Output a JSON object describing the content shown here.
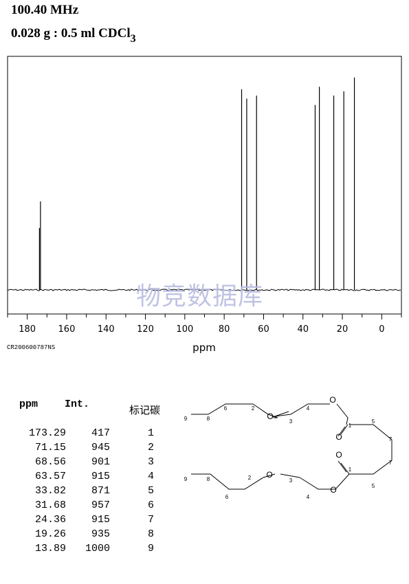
{
  "header": {
    "line1": "100.40 MHz",
    "line2_main": "0.028 g : 0.5 ml CDCl",
    "line2_sub": "3"
  },
  "chart_data": {
    "type": "line",
    "xlabel": "ppm",
    "xlim": [
      190,
      -10
    ],
    "x_ticks": [
      180,
      160,
      140,
      120,
      100,
      80,
      60,
      40,
      20,
      0
    ],
    "x_tick_labels": [
      "180",
      "160",
      "140",
      "120",
      "100",
      "80",
      "60",
      "40",
      "20",
      "0"
    ],
    "ylim": [
      0,
      1100
    ],
    "peaks": [
      {
        "ppm": 173.29,
        "intensity": 417
      },
      {
        "ppm": 71.15,
        "intensity": 945
      },
      {
        "ppm": 68.56,
        "intensity": 901
      },
      {
        "ppm": 63.57,
        "intensity": 915
      },
      {
        "ppm": 33.82,
        "intensity": 871
      },
      {
        "ppm": 31.68,
        "intensity": 957
      },
      {
        "ppm": 24.36,
        "intensity": 915
      },
      {
        "ppm": 19.26,
        "intensity": 935
      },
      {
        "ppm": 13.89,
        "intensity": 1000
      }
    ],
    "grid": false
  },
  "spectrum_code": "CR200600787NS",
  "watermark": "物竞数据库",
  "table": {
    "headers": [
      "ppm",
      "Int.",
      "标记碳"
    ],
    "rows": [
      [
        "173.29",
        "417",
        "1"
      ],
      [
        "71.15",
        "945",
        "2"
      ],
      [
        "68.56",
        "901",
        "3"
      ],
      [
        "63.57",
        "915",
        "4"
      ],
      [
        "33.82",
        "871",
        "5"
      ],
      [
        "31.68",
        "957",
        "6"
      ],
      [
        "24.36",
        "915",
        "7"
      ],
      [
        "19.26",
        "935",
        "8"
      ],
      [
        "13.89",
        "1000",
        "9"
      ]
    ]
  },
  "structure": {
    "oxygen_label": "O",
    "carbon_labels": [
      "1",
      "2",
      "3",
      "4",
      "5",
      "6",
      "7",
      "8",
      "9"
    ]
  }
}
